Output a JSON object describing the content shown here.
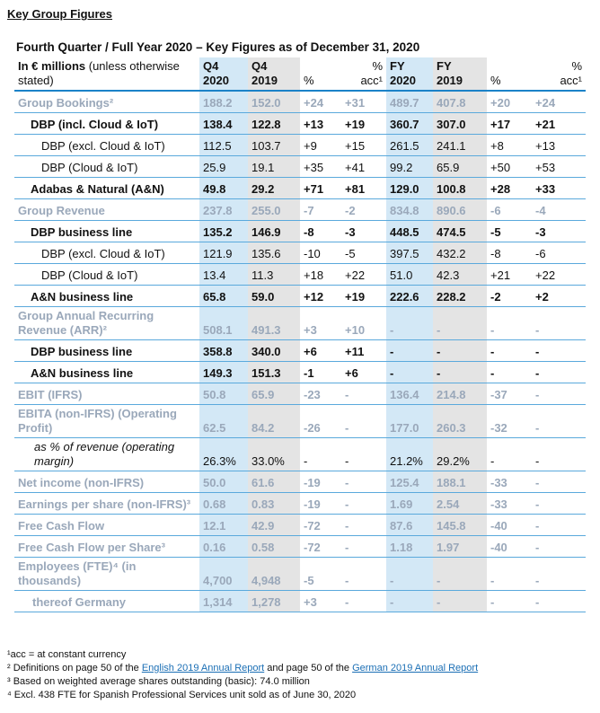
{
  "header": {
    "title": "Key Group Figures"
  },
  "table": {
    "title": "Fourth Quarter / Full Year 2020 – Key Figures as of December 31, 2020",
    "corner": {
      "bold": "In € millions",
      "rest": " (unless otherwise stated)"
    },
    "columns": [
      [
        "Q4",
        "2020"
      ],
      [
        "Q4",
        "2019"
      ],
      [
        "%"
      ],
      [
        "%",
        "acc¹"
      ],
      [
        "FY",
        "2020"
      ],
      [
        "FY",
        "2019"
      ],
      [
        "%"
      ],
      [
        "%",
        "acc¹"
      ]
    ],
    "column_shades": [
      "blue",
      "gray",
      "none",
      "none",
      "blue",
      "gray",
      "none",
      "none"
    ],
    "rows": [
      {
        "label": "Group Bookings²",
        "style": "group",
        "values": [
          "188.2",
          "152.0",
          "+24",
          "+31",
          "489.7",
          "407.8",
          "+20",
          "+24"
        ]
      },
      {
        "label": "DBP (incl. Cloud & IoT)",
        "style": "bold",
        "values": [
          "138.4",
          "122.8",
          "+13",
          "+19",
          "360.7",
          "307.0",
          "+17",
          "+21"
        ]
      },
      {
        "label": "DBP (excl. Cloud & IoT)",
        "style": "sub",
        "values": [
          "112.5",
          "103.7",
          "+9",
          "+15",
          "261.5",
          "241.1",
          "+8",
          "+13"
        ]
      },
      {
        "label": "DBP (Cloud & IoT)",
        "style": "sub",
        "values": [
          "25.9",
          "19.1",
          "+35",
          "+41",
          "99.2",
          "65.9",
          "+50",
          "+53"
        ]
      },
      {
        "label": "Adabas & Natural (A&N)",
        "style": "bold",
        "values": [
          "49.8",
          "29.2",
          "+71",
          "+81",
          "129.0",
          "100.8",
          "+28",
          "+33"
        ]
      },
      {
        "label": "Group Revenue",
        "style": "group",
        "values": [
          "237.8",
          "255.0",
          "-7",
          "-2",
          "834.8",
          "890.6",
          "-6",
          "-4"
        ]
      },
      {
        "label": "DBP business line",
        "style": "bold",
        "values": [
          "135.2",
          "146.9",
          "-8",
          "-3",
          "448.5",
          "474.5",
          "-5",
          "-3"
        ]
      },
      {
        "label": "DBP (excl. Cloud & IoT)",
        "style": "sub",
        "values": [
          "121.9",
          "135.6",
          "-10",
          "-5",
          "397.5",
          "432.2",
          "-8",
          "-6"
        ]
      },
      {
        "label": "DBP (Cloud & IoT)",
        "style": "sub",
        "values": [
          "13.4",
          "11.3",
          "+18",
          "+22",
          "51.0",
          "42.3",
          "+21",
          "+22"
        ]
      },
      {
        "label": "A&N business line",
        "style": "bold",
        "values": [
          "65.8",
          "59.0",
          "+12",
          "+19",
          "222.6",
          "228.2",
          "-2",
          "+2"
        ]
      },
      {
        "label": "Group Annual Recurring Revenue (ARR)²",
        "style": "group",
        "values": [
          "508.1",
          "491.3",
          "+3",
          "+10",
          "-",
          "-",
          "-",
          "-"
        ]
      },
      {
        "label": "DBP business line",
        "style": "bold",
        "values": [
          "358.8",
          "340.0",
          "+6",
          "+11",
          "-",
          "-",
          "-",
          "-"
        ]
      },
      {
        "label": "A&N business line",
        "style": "bold",
        "values": [
          "149.3",
          "151.3",
          "-1",
          "+6",
          "-",
          "-",
          "-",
          "-"
        ]
      },
      {
        "label": "EBIT (IFRS)",
        "style": "group",
        "values": [
          "50.8",
          "65.9",
          "-23",
          "-",
          "136.4",
          "214.8",
          "-37",
          "-"
        ]
      },
      {
        "label": "EBITA (non-IFRS) (Operating Profit)",
        "style": "group",
        "values": [
          "62.5",
          "84.2",
          "-26",
          "-",
          "177.0",
          "260.3",
          "-32",
          "-"
        ]
      },
      {
        "label": "as % of revenue (operating margin)",
        "style": "italic",
        "values": [
          "26.3%",
          "33.0%",
          "-",
          "-",
          "21.2%",
          "29.2%",
          "-",
          "-"
        ]
      },
      {
        "label": "Net income (non-IFRS)",
        "style": "group",
        "values": [
          "50.0",
          "61.6",
          "-19",
          "-",
          "125.4",
          "188.1",
          "-33",
          "-"
        ]
      },
      {
        "label": "Earnings per share (non-IFRS)³",
        "style": "group",
        "values": [
          "0.68",
          "0.83",
          "-19",
          "-",
          "1.69",
          "2.54",
          "-33",
          "-"
        ]
      },
      {
        "label": "Free Cash Flow",
        "style": "group",
        "values": [
          "12.1",
          "42.9",
          "-72",
          "-",
          "87.6",
          "145.8",
          "-40",
          "-"
        ]
      },
      {
        "label": "Free Cash Flow per Share³",
        "style": "group",
        "values": [
          "0.16",
          "0.58",
          "-72",
          "-",
          "1.18",
          "1.97",
          "-40",
          "-"
        ]
      },
      {
        "label": "Employees (FTE)⁴ (in thousands)",
        "style": "group",
        "values": [
          "4,700",
          "4,948",
          "-5",
          "-",
          "-",
          "-",
          "-",
          "-"
        ]
      },
      {
        "label": "thereof Germany",
        "style": "group-sub",
        "values": [
          "1,314",
          "1,278",
          "+3",
          "-",
          "-",
          "-",
          "-",
          "-"
        ]
      }
    ]
  },
  "footnotes": [
    [
      "¹acc = at constant currency"
    ],
    [
      "² Definitions on page 50 of the ",
      {
        "link": "English 2019 Annual Report"
      },
      " and page 50 of the ",
      {
        "link": "German 2019 Annual Report"
      }
    ],
    [
      "³ Based on weighted average shares outstanding (basic): 74.0 million"
    ],
    [
      "⁴ Excl. 438 FTE for Spanish Professional Services unit sold as of June 30, 2020"
    ]
  ]
}
